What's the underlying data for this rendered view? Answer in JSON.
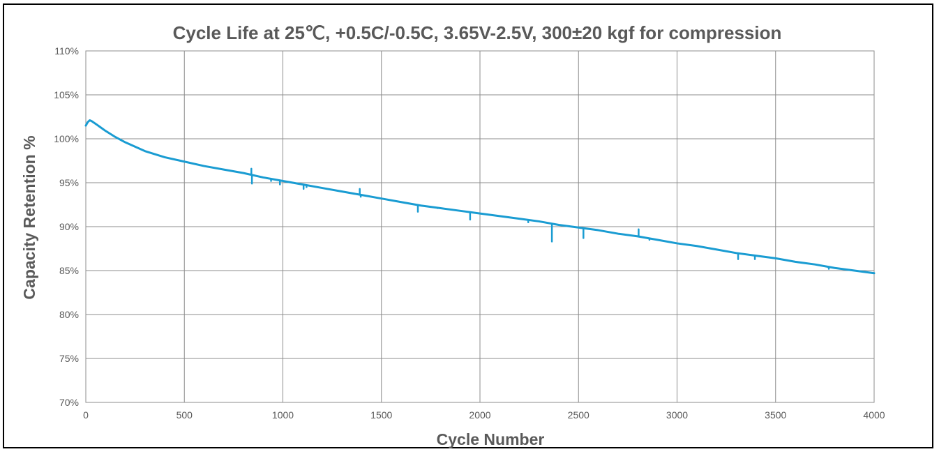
{
  "chart_data": {
    "type": "line",
    "title": "Cycle Life at 25℃, +0.5C/-0.5C, 3.65V-2.5V, 300±20 kgf for compression",
    "xlabel": "Cycle  Number",
    "ylabel": "Capacity  Retention %",
    "xlim": [
      0,
      4000
    ],
    "ylim": [
      70,
      110
    ],
    "x_ticks": [
      0,
      500,
      1000,
      1500,
      2000,
      2500,
      3000,
      3500,
      4000
    ],
    "x_tick_labels": [
      "0",
      "500",
      "1000",
      "1500",
      "2000",
      "2500",
      "3000",
      "3500",
      "4000"
    ],
    "y_ticks": [
      70,
      75,
      80,
      85,
      90,
      95,
      100,
      105,
      110
    ],
    "y_tick_labels": [
      "70%",
      "75%",
      "80%",
      "85%",
      "90%",
      "95%",
      "100%",
      "105%",
      "110%"
    ],
    "grid": true,
    "legend": "none",
    "line_color": "#1a9cd2",
    "series": [
      {
        "x": [
          0,
          5,
          10,
          20,
          30,
          50,
          75,
          100,
          150,
          200,
          300,
          400,
          500,
          600,
          700,
          800,
          900,
          1000,
          1100,
          1200,
          1300,
          1400,
          1500,
          1600,
          1700,
          1800,
          1900,
          2000,
          2100,
          2200,
          2300,
          2400,
          2500,
          2600,
          2700,
          2800,
          2900,
          3000,
          3100,
          3200,
          3300,
          3400,
          3500,
          3600,
          3700,
          3800,
          3900,
          4000
        ],
        "y": [
          101.5,
          101.7,
          101.9,
          102.1,
          102.0,
          101.7,
          101.3,
          100.9,
          100.2,
          99.6,
          98.6,
          97.9,
          97.4,
          96.9,
          96.5,
          96.1,
          95.6,
          95.2,
          94.8,
          94.4,
          94.0,
          93.6,
          93.2,
          92.8,
          92.4,
          92.1,
          91.8,
          91.5,
          91.2,
          90.9,
          90.6,
          90.2,
          89.9,
          89.6,
          89.2,
          88.9,
          88.5,
          88.1,
          87.8,
          87.4,
          87.0,
          86.7,
          86.4,
          86.0,
          85.7,
          85.3,
          85.0,
          84.7
        ],
        "spikes": [
          {
            "x": 840,
            "to": 96.6
          },
          {
            "x": 843,
            "to": 94.9
          },
          {
            "x": 940,
            "to": 95.2
          },
          {
            "x": 985,
            "to": 94.8
          },
          {
            "x": 1105,
            "to": 94.3
          },
          {
            "x": 1120,
            "to": 94.5
          },
          {
            "x": 1390,
            "to": 94.3
          },
          {
            "x": 1395,
            "to": 93.4
          },
          {
            "x": 1685,
            "to": 91.7
          },
          {
            "x": 1785,
            "to": 92.1
          },
          {
            "x": 1950,
            "to": 90.8
          },
          {
            "x": 2245,
            "to": 90.5
          },
          {
            "x": 2365,
            "to": 88.3
          },
          {
            "x": 2525,
            "to": 88.7
          },
          {
            "x": 2805,
            "to": 89.7
          },
          {
            "x": 2860,
            "to": 88.5
          },
          {
            "x": 3310,
            "to": 86.3
          },
          {
            "x": 3395,
            "to": 86.3
          },
          {
            "x": 3770,
            "to": 85.2
          }
        ]
      }
    ]
  }
}
